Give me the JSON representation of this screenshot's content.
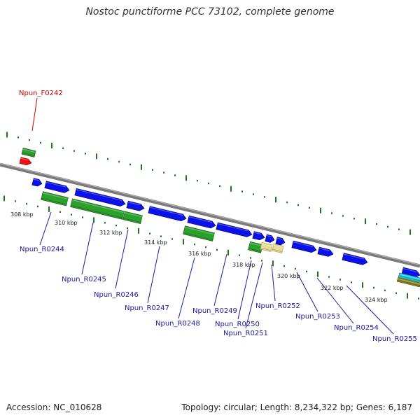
{
  "title": "Nostoc punctiforme PCC 73102, complete genome",
  "accession": "Accession: NC_010628",
  "info": "Topology: circular; Length: 8,234,322 bp; Genes: 6,187",
  "colors": {
    "backbone": "#888888",
    "tick": "#1a7a1a",
    "cds": "#0a12e8",
    "gene_green": "#2ca02c",
    "tan": "#e8dc9a",
    "red": "#ee1111",
    "cyan": "#22ccdd",
    "olive": "#888822",
    "label_blue": "#1a1aa0",
    "label_red": "#cc0000"
  },
  "scale_labels": [
    "308 kbp",
    "310 kbp",
    "312 kbp",
    "314 kbp",
    "316 kbp",
    "318 kbp",
    "320 kbp",
    "322 kbp",
    "324 kbp"
  ],
  "gene_labels": [
    "Npun_F0242",
    "Npun_R0244",
    "Npun_R0245",
    "Npun_R0246",
    "Npun_R0247",
    "Npun_R0248",
    "Npun_R0249",
    "Npun_R0250",
    "Npun_R0251",
    "Npun_R0252",
    "Npun_R0253",
    "Npun_R0254",
    "Npun_R0255"
  ]
}
